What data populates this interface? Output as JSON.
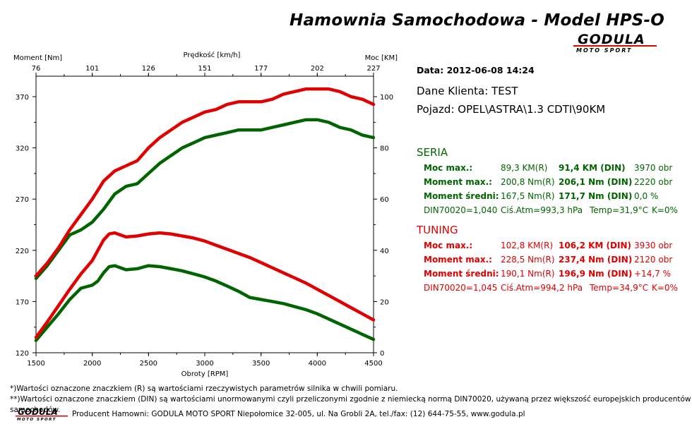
{
  "header": {
    "title": "Hamownia Samochodowa   -   Model HPS-O",
    "logo_word": "GODULA",
    "logo_sub": "MOTO SPORT"
  },
  "info": {
    "date": "Data: 2012-06-08  14:24",
    "client": "Dane Klienta: TEST",
    "vehicle": "Pojazd: OPEL\\ASTRA\\1.3 CDTI\\90KM"
  },
  "seria": {
    "heading": "SERIA",
    "rows": [
      {
        "label": "Moc max.:",
        "r": "89,3 KM(R)",
        "din": "91,4 KM (DIN)",
        "extra": "3970 obr"
      },
      {
        "label": "Moment max.:",
        "r": "200,8 Nm(R)",
        "din": "206,1 Nm (DIN)",
        "extra": "2220 obr"
      },
      {
        "label": "Moment średni:",
        "r": "167,5 Nm(R)",
        "din": "171,7 Nm (DIN)",
        "extra": "0,0 %"
      }
    ],
    "din_line": {
      "norm": "DIN70020=1,040",
      "atm": "Ciś.Atm=993,3 hPa",
      "temp": "Temp=31,9°C",
      "k": "K=0%"
    }
  },
  "tuning": {
    "heading": "TUNING",
    "rows": [
      {
        "label": "Moc max.:",
        "r": "102,8 KM(R)",
        "din": "106,2 KM (DIN)",
        "extra": "3930 obr"
      },
      {
        "label": "Moment max.:",
        "r": "228,5 Nm(R)",
        "din": "237,4 Nm (DIN)",
        "extra": "2120 obr"
      },
      {
        "label": "Moment średni:",
        "r": "190,1 Nm(R)",
        "din": "196,9 Nm (DIN)",
        "extra": "+14,7 %"
      }
    ],
    "din_line": {
      "norm": "DIN70020=1,045",
      "atm": "Ciś.Atm=994,2 hPa",
      "temp": "Temp=34,9°C",
      "k": "K=0%"
    }
  },
  "footer": {
    "note1": "*)Wartości oznaczone znaczkiem (R) są wartościami rzeczywistych parametrów silnika w chwili pomiaru.",
    "note2": "**)Wartości oznaczone znaczkiem (DIN) są wartościami unormowanymi czyli przeliczonymi zgodnie z niemiecką normą DIN70020, używaną przez większość europejskich producentów samochodów.",
    "producer": "Producent Hamowni: GODULA MOTO SPORT Niepołomice 32-005, ul. Na Grobli 2A, tel./fax: (12) 644-75-55, www.godula.pl"
  },
  "colors": {
    "seria": "#006400",
    "tuning": "#e00000"
  },
  "chart_data": {
    "type": "line",
    "xlabel": "Obroty [RPM]",
    "ylabel_left": "Moment [Nm]",
    "ylabel_right": "Moc [KM]",
    "top_axis_label": "Prędkość [km/h]",
    "xlim": [
      1500,
      4500
    ],
    "ylim_left": [
      120,
      390
    ],
    "ylim_right": [
      0,
      108
    ],
    "x_ticks": [
      1500,
      2000,
      2500,
      3000,
      3500,
      4000,
      4500
    ],
    "y_left_ticks": [
      120,
      170,
      220,
      270,
      320,
      370
    ],
    "y_right_ticks": [
      0,
      20,
      40,
      60,
      80,
      100
    ],
    "top_ticks": [
      "76",
      "101",
      "126",
      "151",
      "177",
      "202",
      "227"
    ],
    "series": [
      {
        "name": "SERIA",
        "kind": "moment",
        "axis": "left",
        "color": "#006400",
        "x": [
          1500,
          1600,
          1700,
          1800,
          1900,
          2000,
          2050,
          2100,
          2150,
          2200,
          2300,
          2400,
          2500,
          2600,
          2700,
          2800,
          2900,
          3000,
          3100,
          3200,
          3300,
          3400,
          3500,
          3600,
          3700,
          3800,
          3900,
          4000,
          4100,
          4200,
          4300,
          4400,
          4500
        ],
        "values": [
          132,
          145,
          158,
          172,
          183,
          186,
          190,
          198,
          204,
          205,
          201,
          202,
          205,
          204,
          202,
          200,
          197,
          194,
          190,
          185,
          180,
          174,
          172,
          170,
          168,
          165,
          162,
          158,
          153,
          148,
          143,
          138,
          133
        ]
      },
      {
        "name": "TUNING",
        "kind": "moment",
        "axis": "left",
        "color": "#e00000",
        "x": [
          1500,
          1600,
          1700,
          1800,
          1900,
          2000,
          2050,
          2100,
          2150,
          2200,
          2300,
          2400,
          2500,
          2600,
          2700,
          2800,
          2900,
          3000,
          3100,
          3200,
          3300,
          3400,
          3500,
          3600,
          3700,
          3800,
          3900,
          4000,
          4100,
          4200,
          4300,
          4400,
          4500
        ],
        "values": [
          135,
          150,
          166,
          182,
          197,
          210,
          220,
          230,
          236,
          237,
          233,
          234,
          236,
          237,
          236,
          234,
          232,
          229,
          225,
          221,
          217,
          213,
          208,
          203,
          198,
          193,
          188,
          182,
          176,
          170,
          164,
          158,
          152
        ]
      },
      {
        "name": "SERIA",
        "kind": "power",
        "axis": "right",
        "color": "#006400",
        "x": [
          1500,
          1600,
          1700,
          1800,
          1900,
          2000,
          2100,
          2200,
          2300,
          2400,
          2500,
          2600,
          2700,
          2800,
          2900,
          3000,
          3100,
          3200,
          3300,
          3400,
          3500,
          3600,
          3700,
          3800,
          3900,
          4000,
          4100,
          4200,
          4300,
          4400,
          4500
        ],
        "values": [
          29,
          34,
          40,
          46,
          48,
          51,
          56,
          62,
          65,
          66,
          70,
          74,
          77,
          80,
          82,
          84,
          85,
          86,
          87,
          87,
          87,
          88,
          89,
          90,
          91,
          91,
          90,
          88,
          87,
          85,
          84
        ]
      },
      {
        "name": "TUNING",
        "kind": "power",
        "axis": "right",
        "color": "#e00000",
        "x": [
          1500,
          1600,
          1700,
          1800,
          1900,
          2000,
          2100,
          2200,
          2300,
          2400,
          2500,
          2600,
          2700,
          2800,
          2900,
          3000,
          3100,
          3200,
          3300,
          3400,
          3500,
          3600,
          3700,
          3800,
          3900,
          4000,
          4100,
          4200,
          4300,
          4400,
          4500
        ],
        "values": [
          30,
          35,
          41,
          48,
          54,
          60,
          67,
          71,
          73,
          75,
          80,
          84,
          87,
          90,
          92,
          94,
          95,
          97,
          98,
          98,
          98,
          99,
          101,
          102,
          103,
          103,
          103,
          102,
          100,
          99,
          97
        ]
      }
    ]
  }
}
